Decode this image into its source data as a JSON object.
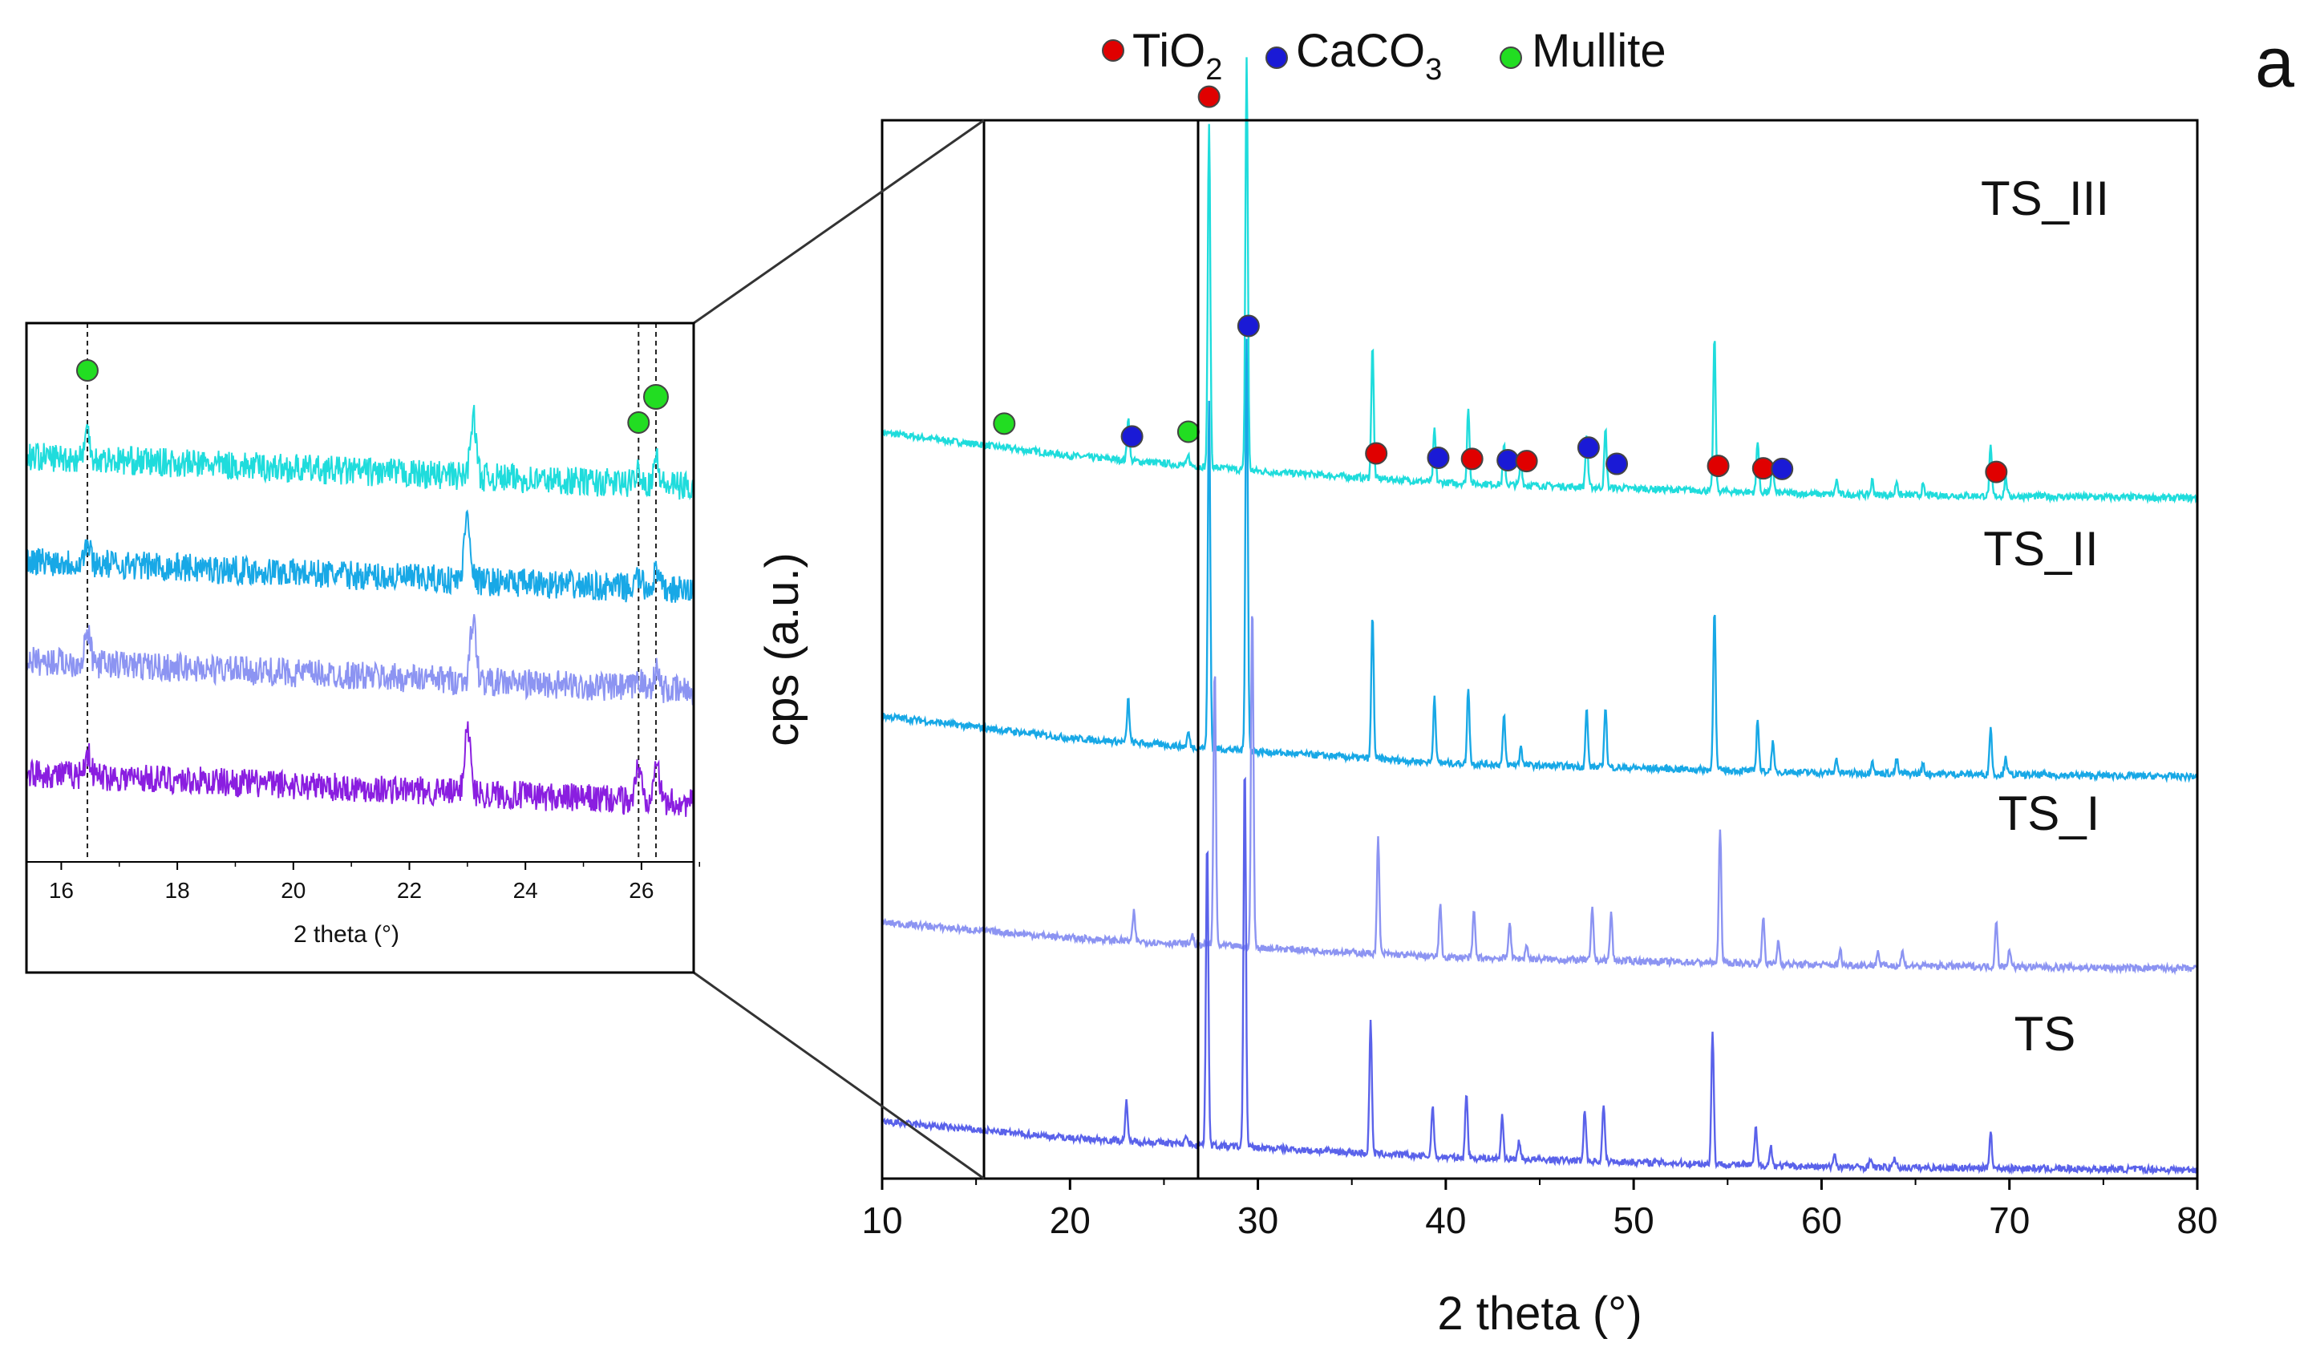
{
  "panel_letter": "a",
  "legend": {
    "items": [
      {
        "marker": "red",
        "label": "TiO",
        "sub": "2"
      },
      {
        "marker": "blue",
        "label": "CaCO",
        "sub": "3"
      },
      {
        "marker": "green",
        "label": "Mullite",
        "sub": ""
      }
    ]
  },
  "colors": {
    "tio2": "#e00000",
    "caco3": "#1a1ad6",
    "mullite": "#22dd22",
    "TS_III": "#1fdcdc",
    "TS_II": "#18a8e6",
    "TS_I": "#8c94f2",
    "TS": "#5a62ea",
    "inset_TS": "#8a1ee0"
  },
  "chart_data": [
    {
      "type": "line",
      "xlabel": "2 theta (°)",
      "ylabel": "cps (a.u.)",
      "xlim": [
        10,
        80
      ],
      "xticks": [
        "10",
        "20",
        "30",
        "40",
        "50",
        "60",
        "70",
        "80"
      ],
      "series": [
        {
          "name": "TS_III",
          "baseline": [
            [
              10,
              0.92
            ],
            [
              20,
              0.68
            ],
            [
              30,
              0.52
            ],
            [
              40,
              0.4
            ],
            [
              60,
              0.28
            ],
            [
              80,
              0.24
            ]
          ],
          "peaks": [
            [
              23.1,
              0.45
            ],
            [
              26.3,
              0.1
            ],
            [
              27.4,
              3.6
            ],
            [
              29.4,
              4.3
            ],
            [
              36.1,
              1.4
            ],
            [
              39.4,
              0.55
            ],
            [
              41.2,
              0.8
            ],
            [
              43.1,
              0.4
            ],
            [
              44.0,
              0.25
            ],
            [
              47.5,
              0.55
            ],
            [
              48.5,
              0.6
            ],
            [
              54.3,
              1.6
            ],
            [
              56.6,
              0.55
            ],
            [
              57.4,
              0.3
            ],
            [
              60.8,
              0.15
            ],
            [
              62.7,
              0.15
            ],
            [
              64.0,
              0.15
            ],
            [
              65.4,
              0.1
            ],
            [
              69.0,
              0.5
            ],
            [
              69.8,
              0.2
            ]
          ]
        },
        {
          "name": "TS_II",
          "baseline": [
            [
              10,
              0.85
            ],
            [
              20,
              0.62
            ],
            [
              30,
              0.48
            ],
            [
              40,
              0.36
            ],
            [
              60,
              0.26
            ],
            [
              80,
              0.22
            ]
          ],
          "peaks": [
            [
              23.1,
              0.45
            ],
            [
              26.3,
              0.15
            ],
            [
              27.4,
              3.6
            ],
            [
              29.4,
              4.3
            ],
            [
              36.1,
              1.5
            ],
            [
              39.4,
              0.7
            ],
            [
              41.2,
              0.8
            ],
            [
              43.1,
              0.5
            ],
            [
              44.0,
              0.2
            ],
            [
              47.5,
              0.6
            ],
            [
              48.5,
              0.65
            ],
            [
              54.3,
              1.7
            ],
            [
              56.6,
              0.55
            ],
            [
              57.4,
              0.3
            ],
            [
              60.8,
              0.15
            ],
            [
              62.7,
              0.15
            ],
            [
              64.0,
              0.15
            ],
            [
              65.4,
              0.1
            ],
            [
              69.0,
              0.5
            ],
            [
              69.8,
              0.2
            ]
          ]
        },
        {
          "name": "TS_I",
          "baseline": [
            [
              10,
              0.62
            ],
            [
              20,
              0.46
            ],
            [
              30,
              0.36
            ],
            [
              40,
              0.26
            ],
            [
              60,
              0.18
            ],
            [
              80,
              0.14
            ]
          ],
          "peaks": [
            [
              23.4,
              0.3
            ],
            [
              26.5,
              0.1
            ],
            [
              27.7,
              2.9
            ],
            [
              29.7,
              3.6
            ],
            [
              36.4,
              1.2
            ],
            [
              39.7,
              0.55
            ],
            [
              41.5,
              0.5
            ],
            [
              43.4,
              0.4
            ],
            [
              44.3,
              0.15
            ],
            [
              47.8,
              0.55
            ],
            [
              48.8,
              0.5
            ],
            [
              54.6,
              1.4
            ],
            [
              56.9,
              0.5
            ],
            [
              57.7,
              0.25
            ],
            [
              61.0,
              0.15
            ],
            [
              63.0,
              0.15
            ],
            [
              64.3,
              0.15
            ],
            [
              69.3,
              0.5
            ],
            [
              70.0,
              0.2
            ]
          ]
        },
        {
          "name": "TS",
          "baseline": [
            [
              10,
              0.55
            ],
            [
              20,
              0.38
            ],
            [
              30,
              0.28
            ],
            [
              40,
              0.18
            ],
            [
              60,
              0.08
            ],
            [
              80,
              0.05
            ]
          ],
          "peaks": [
            [
              23.0,
              0.4
            ],
            [
              26.2,
              0.1
            ],
            [
              27.3,
              3.2
            ],
            [
              29.3,
              4.0
            ],
            [
              36.0,
              1.4
            ],
            [
              39.3,
              0.55
            ],
            [
              41.1,
              0.7
            ],
            [
              43.0,
              0.45
            ],
            [
              43.9,
              0.2
            ],
            [
              47.4,
              0.55
            ],
            [
              48.4,
              0.6
            ],
            [
              54.2,
              1.4
            ],
            [
              56.5,
              0.4
            ],
            [
              57.3,
              0.2
            ],
            [
              60.7,
              0.15
            ],
            [
              62.6,
              0.1
            ],
            [
              63.9,
              0.1
            ],
            [
              69.0,
              0.4
            ]
          ]
        }
      ],
      "series_labels": [
        "TS_III",
        "TS_II",
        "TS_I",
        "TS"
      ],
      "phase_markers": [
        {
          "phase": "Mullite",
          "x": 16.5
        },
        {
          "phase": "CaCO3",
          "x": 23.3
        },
        {
          "phase": "Mullite",
          "x": 26.3
        },
        {
          "phase": "TiO2",
          "x": 27.4
        },
        {
          "phase": "CaCO3",
          "x": 29.5
        },
        {
          "phase": "TiO2",
          "x": 36.3
        },
        {
          "phase": "CaCO3",
          "x": 39.6
        },
        {
          "phase": "TiO2",
          "x": 41.4
        },
        {
          "phase": "CaCO3",
          "x": 43.3
        },
        {
          "phase": "TiO2",
          "x": 44.3
        },
        {
          "phase": "CaCO3",
          "x": 47.6
        },
        {
          "phase": "CaCO3",
          "x": 49.1
        },
        {
          "phase": "TiO2",
          "x": 54.5
        },
        {
          "phase": "TiO2",
          "x": 56.9
        },
        {
          "phase": "CaCO3",
          "x": 57.9
        },
        {
          "phase": "TiO2",
          "x": 69.3
        }
      ],
      "zoom_region": [
        15.4,
        26.6
      ]
    },
    {
      "type": "line",
      "xlabel": "2 theta (°)",
      "ylabel": "",
      "xlim": [
        15.4,
        26.9
      ],
      "xticks": [
        "16",
        "18",
        "20",
        "22",
        "24",
        "26"
      ],
      "dashed_lines_x": [
        16.45,
        25.95,
        26.25
      ],
      "series": [
        {
          "name": "TS_III",
          "baseline": [
            [
              15.4,
              0.8
            ],
            [
              26.9,
              0.4
            ]
          ],
          "peaks": [
            [
              16.45,
              0.35
            ],
            [
              23.1,
              0.8
            ],
            [
              25.95,
              0.2
            ],
            [
              26.25,
              0.35
            ]
          ]
        },
        {
          "name": "TS_II",
          "baseline": [
            [
              15.4,
              0.8
            ],
            [
              26.9,
              0.4
            ]
          ],
          "peaks": [
            [
              16.45,
              0.25
            ],
            [
              23.0,
              0.9
            ],
            [
              25.95,
              0.15
            ],
            [
              26.25,
              0.2
            ]
          ]
        },
        {
          "name": "TS_I",
          "baseline": [
            [
              15.4,
              0.8
            ],
            [
              26.9,
              0.4
            ]
          ],
          "peaks": [
            [
              16.45,
              0.4
            ],
            [
              23.1,
              0.8
            ],
            [
              25.95,
              0.15
            ],
            [
              26.25,
              0.25
            ]
          ]
        },
        {
          "name": "TS",
          "baseline": [
            [
              15.4,
              0.8
            ],
            [
              26.9,
              0.4
            ]
          ],
          "peaks": [
            [
              16.45,
              0.3
            ],
            [
              23.0,
              0.9
            ],
            [
              25.95,
              0.45
            ],
            [
              26.25,
              0.6
            ]
          ]
        }
      ],
      "phase_markers": [
        {
          "phase": "Mullite",
          "x": 16.45
        },
        {
          "phase": "Mullite",
          "x": 25.95
        },
        {
          "phase": "Mullite",
          "x": 26.25
        }
      ]
    }
  ]
}
